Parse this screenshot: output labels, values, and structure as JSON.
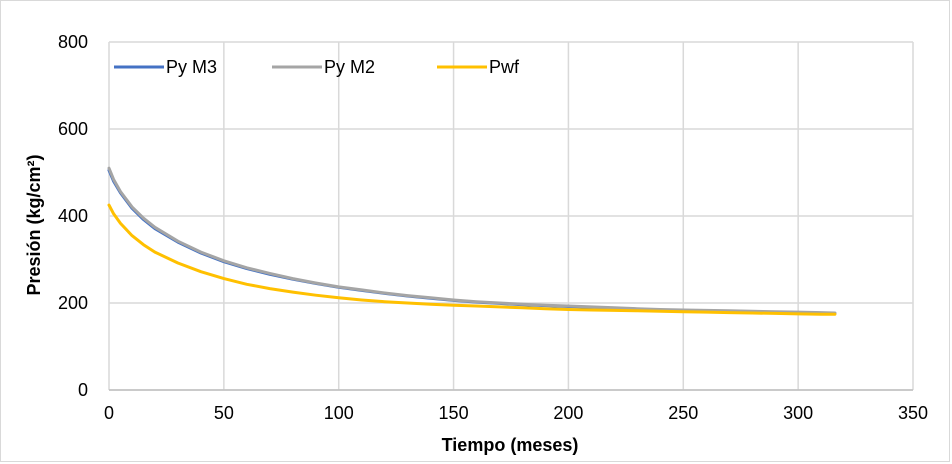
{
  "chart_data": {
    "type": "line",
    "title": "",
    "xlabel": "Tiempo (meses)",
    "ylabel": "Presión (kg/cm²)",
    "xlim": [
      0,
      350
    ],
    "ylim": [
      0,
      800
    ],
    "x_ticks": [
      0,
      50,
      100,
      150,
      200,
      250,
      300,
      350
    ],
    "y_ticks": [
      0,
      200,
      400,
      600,
      800
    ],
    "grid": true,
    "legend_position": "top-left",
    "series": [
      {
        "name": "Py M3",
        "color": "#4472c4",
        "x": [
          0,
          2,
          5,
          10,
          15,
          20,
          30,
          40,
          50,
          60,
          70,
          80,
          90,
          100,
          110,
          120,
          130,
          140,
          150,
          160,
          170,
          180,
          190,
          200,
          210,
          220,
          230,
          240,
          250,
          260,
          270,
          280,
          290,
          300,
          310,
          316
        ],
        "y": [
          505,
          480,
          453,
          418,
          392,
          371,
          340,
          315,
          295,
          279,
          266,
          255,
          245,
          236,
          229,
          222,
          216,
          211,
          206,
          202,
          199,
          196,
          194,
          192,
          190,
          188,
          186,
          184,
          183,
          182,
          181,
          180,
          179,
          178,
          177,
          176
        ]
      },
      {
        "name": "Py M2",
        "color": "#a5a5a5",
        "x": [
          0,
          2,
          5,
          10,
          15,
          20,
          30,
          40,
          50,
          60,
          70,
          80,
          90,
          100,
          110,
          120,
          130,
          140,
          150,
          160,
          170,
          180,
          190,
          200,
          210,
          220,
          230,
          240,
          250,
          260,
          270,
          280,
          290,
          300,
          310,
          316
        ],
        "y": [
          510,
          484,
          456,
          421,
          395,
          374,
          342,
          317,
          297,
          281,
          268,
          256,
          246,
          237,
          230,
          223,
          217,
          212,
          207,
          203,
          200,
          197,
          195,
          193,
          191,
          189,
          187,
          185,
          184,
          183,
          182,
          181,
          180,
          179,
          178,
          177
        ]
      },
      {
        "name": "Pwf",
        "color": "#ffc000",
        "x": [
          0,
          2,
          5,
          10,
          15,
          20,
          30,
          40,
          50,
          60,
          70,
          80,
          90,
          100,
          110,
          120,
          130,
          140,
          150,
          160,
          170,
          180,
          190,
          200,
          210,
          220,
          230,
          240,
          250,
          260,
          270,
          280,
          290,
          300,
          310,
          316
        ],
        "y": [
          425,
          405,
          383,
          355,
          334,
          317,
          292,
          272,
          256,
          243,
          233,
          225,
          218,
          212,
          207,
          203,
          200,
          197,
          195,
          193,
          191,
          189,
          187,
          185,
          184,
          183,
          182,
          181,
          180,
          179,
          178,
          177,
          176,
          175,
          174,
          174
        ]
      }
    ]
  }
}
